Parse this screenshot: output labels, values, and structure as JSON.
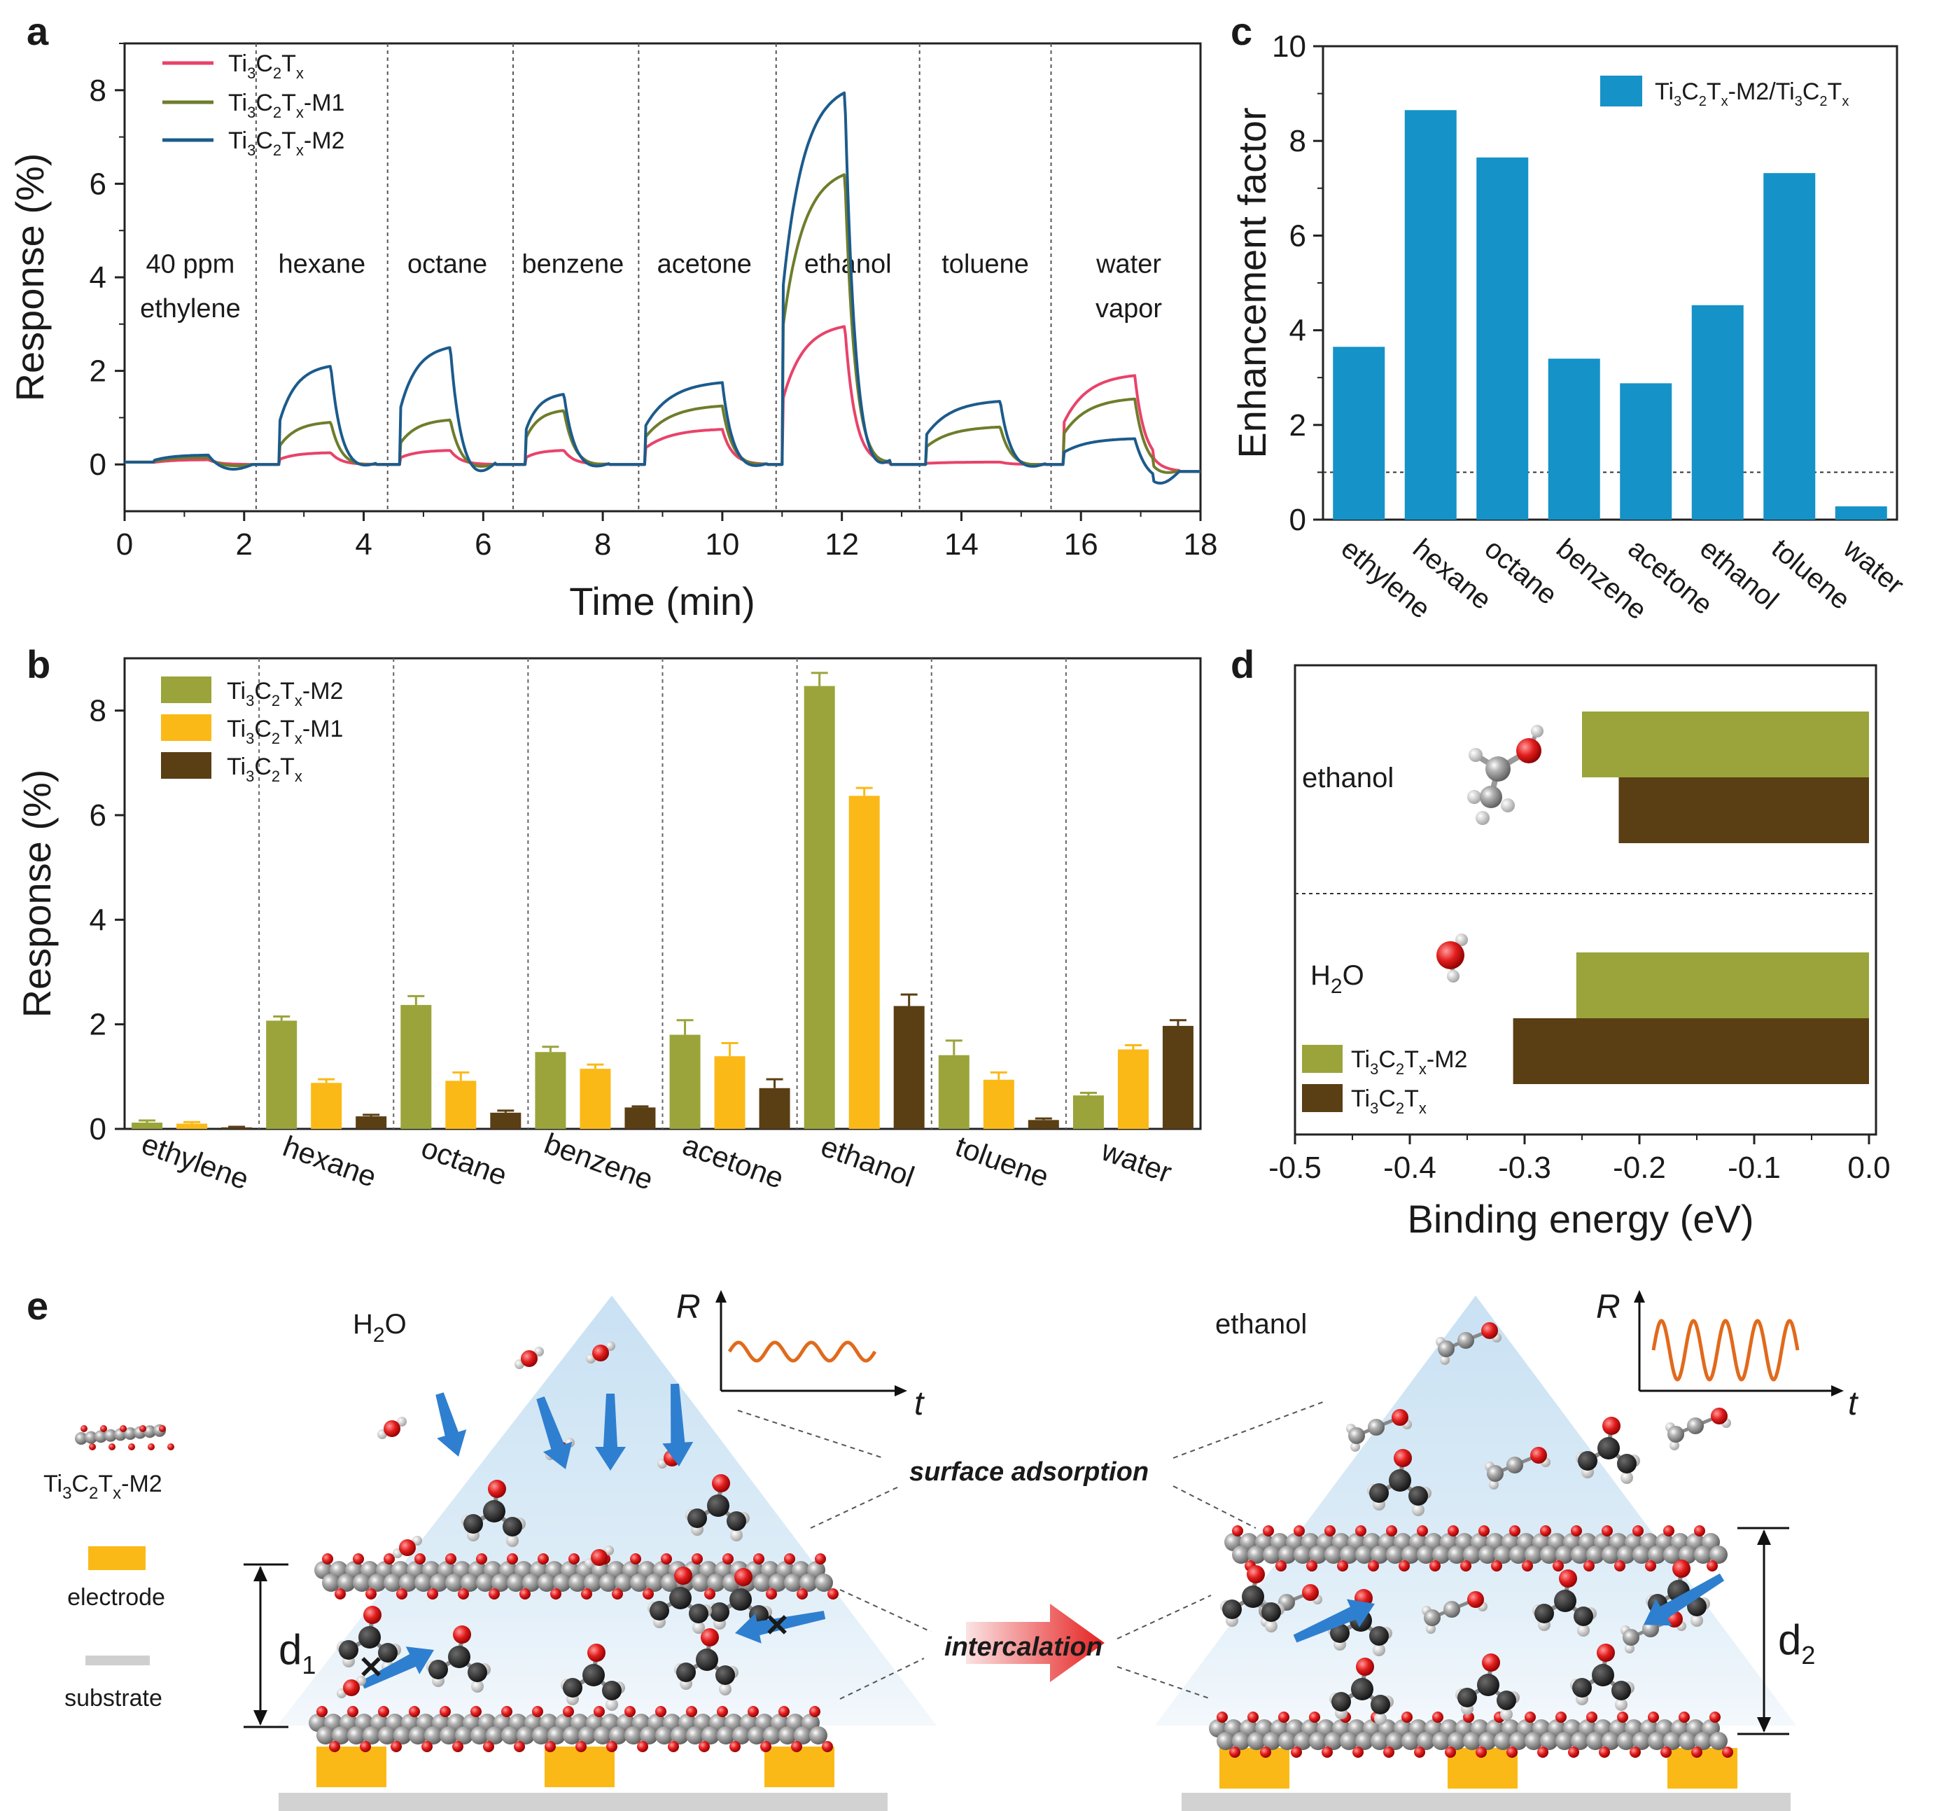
{
  "panel_letters": {
    "a": "a",
    "b": "b",
    "c": "c",
    "d": "d",
    "e": "e"
  },
  "colors": {
    "pristine_line": "#e8436a",
    "m1_line": "#6e7d2b",
    "m2_line": "#1c5b8c",
    "m2_bar": "#9aa43a",
    "m1_bar": "#fbb917",
    "pristine_bar": "#5a3e14",
    "enh_bar": "#1592c7",
    "dft_m2": "#9aa43a",
    "dft_pristine": "#5a3e14"
  },
  "chart_data": [
    {
      "panel": "a",
      "type": "line",
      "title": "",
      "xlabel": "Time (min)",
      "ylabel": "Response (%)",
      "xlim": [
        0,
        18
      ],
      "ylim": [
        -1,
        9
      ],
      "xticks": [
        "0",
        "2",
        "4",
        "6",
        "8",
        "10",
        "12",
        "14",
        "16",
        "18"
      ],
      "yticks": [
        "0",
        "2",
        "4",
        "6",
        "8"
      ],
      "gas_separators_min": [
        2.2,
        4.4,
        6.5,
        8.6,
        10.9,
        13.3,
        15.5
      ],
      "gas_labels": [
        {
          "line1": "40 ppm",
          "line2": "ethylene",
          "x": 1.1
        },
        {
          "line1": "hexane",
          "line2": "",
          "x": 3.3
        },
        {
          "line1": "octane",
          "line2": "",
          "x": 5.4
        },
        {
          "line1": "benzene",
          "line2": "",
          "x": 7.5
        },
        {
          "line1": "acetone",
          "line2": "",
          "x": 9.7
        },
        {
          "line1": "ethanol",
          "line2": "",
          "x": 12.1
        },
        {
          "line1": "toluene",
          "line2": "",
          "x": 14.4
        },
        {
          "line1": "water",
          "line2": "vapor",
          "x": 16.8
        }
      ],
      "series": [
        {
          "name": "Ti3C2Tx",
          "legend": {
            "base": "Ti",
            "s1": "3",
            "m": "C",
            "s2": "2",
            "t": "T",
            "s3": "x",
            "suffix": ""
          },
          "peaks": [
            0.1,
            0.25,
            0.3,
            0.3,
            0.75,
            2.95,
            0.05,
            1.9
          ],
          "dip": 0.0
        },
        {
          "name": "Ti3C2Tx-M1",
          "legend": {
            "base": "Ti",
            "s1": "3",
            "m": "C",
            "s2": "2",
            "t": "T",
            "s3": "x",
            "suffix": "-M1"
          },
          "peaks": [
            0.15,
            0.9,
            0.95,
            1.15,
            1.25,
            6.2,
            0.8,
            1.4
          ],
          "dip": -0.1
        },
        {
          "name": "Ti3C2Tx-M2",
          "legend": {
            "base": "Ti",
            "s1": "3",
            "m": "C",
            "s2": "2",
            "t": "T",
            "s3": "x",
            "suffix": "-M2"
          },
          "peaks": [
            0.2,
            2.1,
            2.5,
            1.5,
            1.75,
            7.95,
            1.35,
            0.55
          ],
          "dip": -0.3
        }
      ]
    },
    {
      "panel": "b",
      "type": "bar",
      "xlabel": "",
      "ylabel": "Response (%)",
      "ylim": [
        0,
        9
      ],
      "yticks": [
        "0",
        "2",
        "4",
        "6",
        "8"
      ],
      "categories": [
        "ethylene",
        "hexane",
        "octane",
        "benzene",
        "acetone",
        "ethanol",
        "toluene",
        "water"
      ],
      "series": [
        {
          "name": "Ti3C2Tx-M2",
          "legend": {
            "base": "Ti",
            "s1": "3",
            "m": "C",
            "s2": "2",
            "t": "T",
            "s3": "x",
            "suffix": "-M2"
          },
          "values": [
            0.12,
            2.07,
            2.37,
            1.47,
            1.8,
            8.47,
            1.41,
            0.64
          ],
          "errors": [
            0.04,
            0.08,
            0.17,
            0.1,
            0.28,
            0.25,
            0.28,
            0.05
          ]
        },
        {
          "name": "Ti3C2Tx-M1",
          "legend": {
            "base": "Ti",
            "s1": "3",
            "m": "C",
            "s2": "2",
            "t": "T",
            "s3": "x",
            "suffix": "-M1"
          },
          "values": [
            0.1,
            0.88,
            0.92,
            1.15,
            1.39,
            6.37,
            0.94,
            1.52
          ],
          "errors": [
            0.03,
            0.07,
            0.16,
            0.08,
            0.25,
            0.15,
            0.14,
            0.08
          ]
        },
        {
          "name": "Ti3C2Tx",
          "legend": {
            "base": "Ti",
            "s1": "3",
            "m": "C",
            "s2": "2",
            "t": "T",
            "s3": "x",
            "suffix": ""
          },
          "values": [
            0.03,
            0.24,
            0.31,
            0.41,
            0.78,
            2.35,
            0.17,
            1.97
          ],
          "errors": [
            0.01,
            0.03,
            0.04,
            0.02,
            0.17,
            0.22,
            0.03,
            0.11
          ]
        }
      ]
    },
    {
      "panel": "c",
      "type": "bar",
      "xlabel": "",
      "ylabel": "Enhancement factor",
      "ylim": [
        0,
        10
      ],
      "yticks": [
        "0",
        "2",
        "4",
        "6",
        "8",
        "10"
      ],
      "categories": [
        "ethylene",
        "hexane",
        "octane",
        "benzene",
        "acetone",
        "ethanol",
        "toluene",
        "water"
      ],
      "reference_line": 1.0,
      "series": [
        {
          "name": "Ti3C2Tx-M2/Ti3C2Tx",
          "legend": {
            "base": "Ti",
            "s1": "3",
            "m": "C",
            "s2": "2",
            "t": "T",
            "s3": "x",
            "mid": "-M2/Ti",
            "s4": "3",
            "m2": "C",
            "s5": "2",
            "t2": "T",
            "s6": "x"
          },
          "values": [
            3.65,
            8.65,
            7.65,
            3.4,
            2.88,
            4.53,
            7.32,
            0.28
          ]
        }
      ]
    },
    {
      "panel": "d",
      "type": "bar",
      "orientation": "horizontal",
      "xlabel": "Binding energy (eV)",
      "xlim": [
        -0.5,
        0.0
      ],
      "xticks": [
        "-0.5",
        "-0.4",
        "-0.3",
        "-0.2",
        "-0.1",
        "0.0"
      ],
      "categories": [
        "ethanol",
        "H2O"
      ],
      "category_labels": {
        "ethanol": "ethanol",
        "h2o_base": "H",
        "h2o_sub": "2",
        "h2o_end": "O"
      },
      "series": [
        {
          "name": "Ti3C2Tx-M2",
          "legend": {
            "base": "Ti",
            "s1": "3",
            "m": "C",
            "s2": "2",
            "t": "T",
            "s3": "x",
            "suffix": "-M2"
          },
          "values": [
            -0.25,
            -0.255
          ]
        },
        {
          "name": "Ti3C2Tx",
          "legend": {
            "base": "Ti",
            "s1": "3",
            "m": "C",
            "s2": "2",
            "t": "T",
            "s3": "x",
            "suffix": ""
          },
          "values": [
            -0.218,
            -0.31
          ]
        }
      ]
    }
  ],
  "panel_e": {
    "legend_material": {
      "base": "Ti",
      "s1": "3",
      "m": "C",
      "s2": "2",
      "t": "T",
      "s3": "x",
      "suffix": "-M2"
    },
    "legend_electrode": "electrode",
    "legend_substrate": "substrate",
    "left_title": {
      "base": "H",
      "sub": "2",
      "end": "O"
    },
    "right_title": "ethanol",
    "label_surface": "surface adsorption",
    "label_intercalation": "intercalation",
    "d1": {
      "base": "d",
      "sub": "1"
    },
    "d2": {
      "base": "d",
      "sub": "2"
    },
    "axis_R": "R",
    "axis_t": "t"
  }
}
